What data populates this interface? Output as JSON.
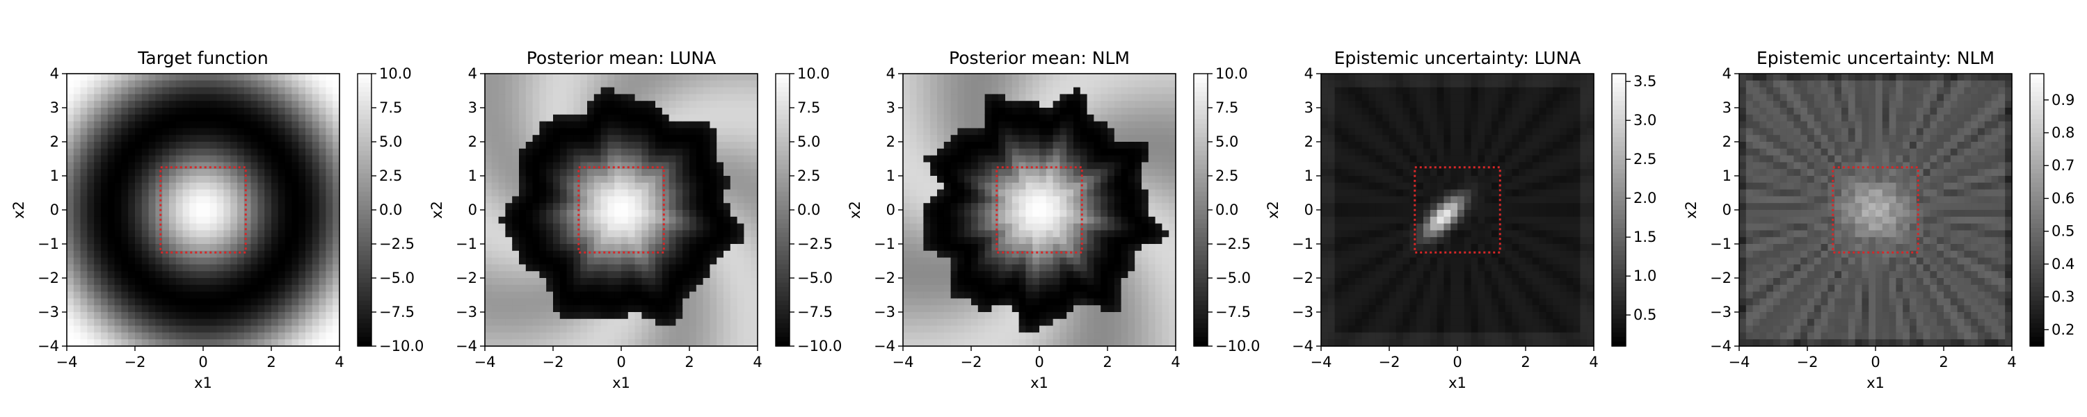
{
  "chart_data": [
    {
      "type": "heatmap",
      "title": "Target function",
      "xlabel": "x1",
      "ylabel": "x2",
      "xlim": [
        -4,
        4
      ],
      "ylim": [
        -4,
        4
      ],
      "x_ticks": [
        "−4",
        "−2",
        "0",
        "2",
        "4"
      ],
      "y_ticks": [
        "−4",
        "−3",
        "−2",
        "−1",
        "0",
        "1",
        "2",
        "3",
        "4"
      ],
      "field": "target",
      "colormap": "gray",
      "colorbar": {
        "range": [
          -10.0,
          10.0
        ],
        "ticks": [
          {
            "value": 10.0,
            "label": "10.0"
          },
          {
            "value": 7.5,
            "label": "7.5"
          },
          {
            "value": 5.0,
            "label": "5.0"
          },
          {
            "value": 2.5,
            "label": "2.5"
          },
          {
            "value": 0.0,
            "label": "0.0"
          },
          {
            "value": -2.5,
            "label": "−2.5"
          },
          {
            "value": -5.0,
            "label": "−5.0"
          },
          {
            "value": -7.5,
            "label": "−7.5"
          },
          {
            "value": -10.0,
            "label": "−10.0"
          }
        ]
      },
      "region_box": {
        "x": [
          -1.25,
          1.25
        ],
        "y": [
          -1.25,
          1.25
        ],
        "color": "#d62728",
        "style": "dotted"
      }
    },
    {
      "type": "heatmap",
      "title": "Posterior mean: LUNA",
      "xlabel": "x1",
      "ylabel": "x2",
      "xlim": [
        -4,
        4
      ],
      "ylim": [
        -4,
        4
      ],
      "x_ticks": [
        "−4",
        "−2",
        "0",
        "2",
        "4"
      ],
      "y_ticks": [
        "−4",
        "−3",
        "−2",
        "−1",
        "0",
        "1",
        "2",
        "3",
        "4"
      ],
      "field": "mean_luna",
      "colormap": "gray",
      "colorbar": {
        "range": [
          -10.0,
          10.0
        ],
        "ticks": [
          {
            "value": 10.0,
            "label": "10.0"
          },
          {
            "value": 7.5,
            "label": "7.5"
          },
          {
            "value": 5.0,
            "label": "5.0"
          },
          {
            "value": 2.5,
            "label": "2.5"
          },
          {
            "value": 0.0,
            "label": "0.0"
          },
          {
            "value": -2.5,
            "label": "−2.5"
          },
          {
            "value": -5.0,
            "label": "−5.0"
          },
          {
            "value": -7.5,
            "label": "−7.5"
          },
          {
            "value": -10.0,
            "label": "−10.0"
          }
        ]
      },
      "region_box": {
        "x": [
          -1.25,
          1.25
        ],
        "y": [
          -1.25,
          1.25
        ],
        "color": "#d62728",
        "style": "dotted"
      }
    },
    {
      "type": "heatmap",
      "title": "Posterior mean: NLM",
      "xlabel": "x1",
      "ylabel": "x2",
      "xlim": [
        -4,
        4
      ],
      "ylim": [
        -4,
        4
      ],
      "x_ticks": [
        "−4",
        "−2",
        "0",
        "2",
        "4"
      ],
      "y_ticks": [
        "−4",
        "−3",
        "−2",
        "−1",
        "0",
        "1",
        "2",
        "3",
        "4"
      ],
      "field": "mean_nlm",
      "colormap": "gray",
      "colorbar": {
        "range": [
          -10.0,
          10.0
        ],
        "ticks": [
          {
            "value": 10.0,
            "label": "10.0"
          },
          {
            "value": 7.5,
            "label": "7.5"
          },
          {
            "value": 5.0,
            "label": "5.0"
          },
          {
            "value": 2.5,
            "label": "2.5"
          },
          {
            "value": 0.0,
            "label": "0.0"
          },
          {
            "value": -2.5,
            "label": "−2.5"
          },
          {
            "value": -5.0,
            "label": "−5.0"
          },
          {
            "value": -7.5,
            "label": "−7.5"
          },
          {
            "value": -10.0,
            "label": "−10.0"
          }
        ]
      },
      "region_box": {
        "x": [
          -1.25,
          1.25
        ],
        "y": [
          -1.25,
          1.25
        ],
        "color": "#d62728",
        "style": "dotted"
      }
    },
    {
      "type": "heatmap",
      "title": "Epistemic uncertainty: LUNA",
      "xlabel": "x1",
      "ylabel": "x2",
      "xlim": [
        -4,
        4
      ],
      "ylim": [
        -4,
        4
      ],
      "x_ticks": [
        "−4",
        "−2",
        "0",
        "2",
        "4"
      ],
      "y_ticks": [
        "−4",
        "−3",
        "−2",
        "−1",
        "0",
        "1",
        "2",
        "3",
        "4"
      ],
      "field": "unc_luna",
      "colormap": "gray",
      "colorbar": {
        "range": [
          0.1,
          3.6
        ],
        "ticks": [
          {
            "value": 3.5,
            "label": "3.5"
          },
          {
            "value": 3.0,
            "label": "3.0"
          },
          {
            "value": 2.5,
            "label": "2.5"
          },
          {
            "value": 2.0,
            "label": "2.0"
          },
          {
            "value": 1.5,
            "label": "1.5"
          },
          {
            "value": 1.0,
            "label": "1.0"
          },
          {
            "value": 0.5,
            "label": "0.5"
          }
        ]
      },
      "region_box": {
        "x": [
          -1.25,
          1.25
        ],
        "y": [
          -1.25,
          1.25
        ],
        "color": "#d62728",
        "style": "dotted"
      }
    },
    {
      "type": "heatmap",
      "title": "Epistemic uncertainty: NLM",
      "xlabel": "x1",
      "ylabel": "x2",
      "xlim": [
        -4,
        4
      ],
      "ylim": [
        -4,
        4
      ],
      "x_ticks": [
        "−4",
        "−2",
        "0",
        "2",
        "4"
      ],
      "y_ticks": [
        "−4",
        "−3",
        "−2",
        "−1",
        "0",
        "1",
        "2",
        "3",
        "4"
      ],
      "field": "unc_nlm",
      "colormap": "gray",
      "colorbar": {
        "range": [
          0.15,
          0.98
        ],
        "ticks": [
          {
            "value": 0.9,
            "label": "0.9"
          },
          {
            "value": 0.8,
            "label": "0.8"
          },
          {
            "value": 0.7,
            "label": "0.7"
          },
          {
            "value": 0.6,
            "label": "0.6"
          },
          {
            "value": 0.5,
            "label": "0.5"
          },
          {
            "value": 0.4,
            "label": "0.4"
          },
          {
            "value": 0.3,
            "label": "0.3"
          },
          {
            "value": 0.2,
            "label": "0.2"
          }
        ]
      },
      "region_box": {
        "x": [
          -1.25,
          1.25
        ],
        "y": [
          -1.25,
          1.25
        ],
        "color": "#d62728",
        "style": "dotted"
      }
    }
  ]
}
